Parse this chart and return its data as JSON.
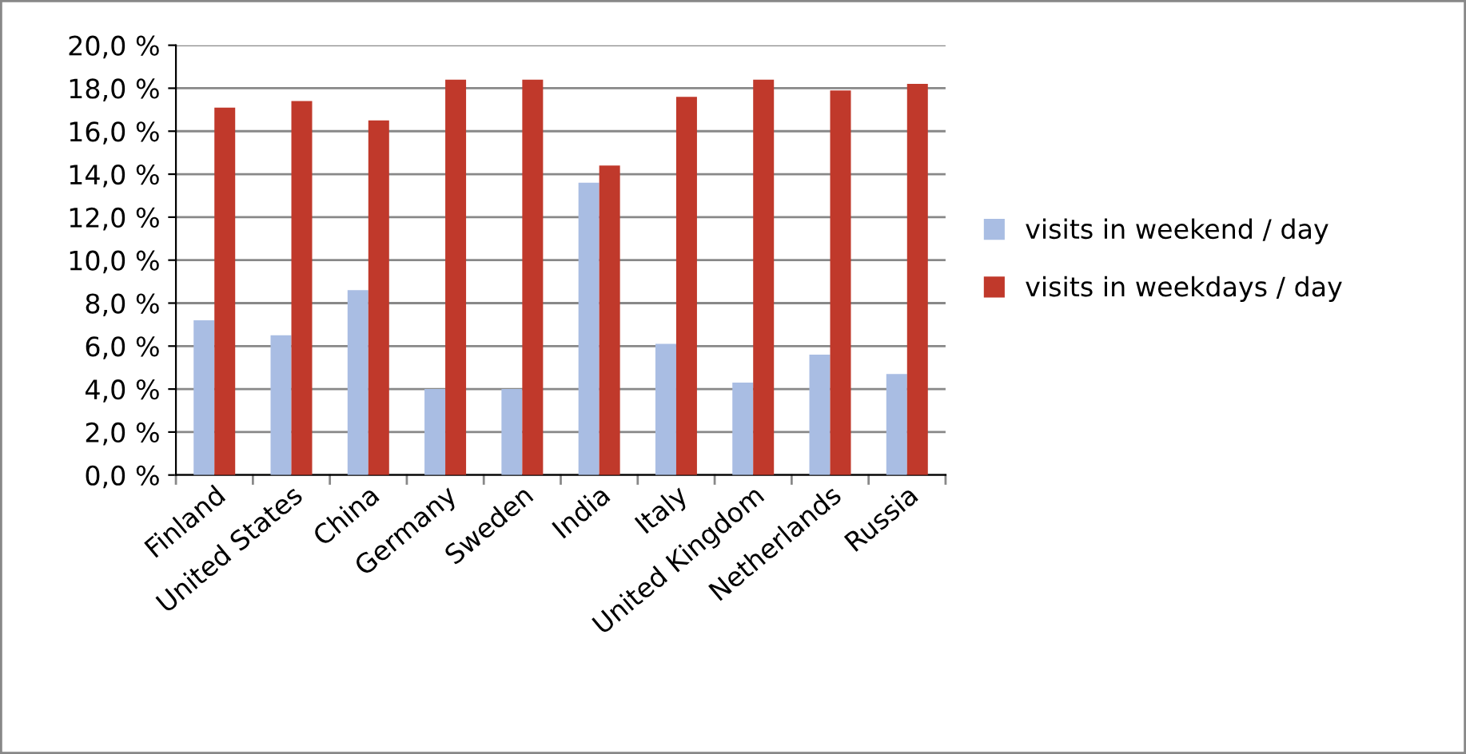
{
  "chart_data": {
    "type": "bar",
    "categories": [
      "Finland",
      "United States",
      "China",
      "Germany",
      "Sweden",
      "India",
      "Italy",
      "United Kingdom",
      "Netherlands",
      "Russia"
    ],
    "series": [
      {
        "name": "visits in weekend / day",
        "color": "#a9bde3",
        "values": [
          7.2,
          6.5,
          8.6,
          4.0,
          4.0,
          13.6,
          6.1,
          4.3,
          5.6,
          4.7
        ]
      },
      {
        "name": "visits in weekdays / day",
        "color": "#c0392b",
        "values": [
          17.1,
          17.4,
          16.5,
          18.4,
          18.4,
          14.4,
          17.6,
          18.4,
          17.9,
          18.2
        ]
      }
    ],
    "ylim": [
      0,
      20
    ],
    "yticks": [
      {
        "value": 0,
        "label": "0,0 %"
      },
      {
        "value": 2,
        "label": "2,0 %"
      },
      {
        "value": 4,
        "label": "4,0 %"
      },
      {
        "value": 6,
        "label": "6,0 %"
      },
      {
        "value": 8,
        "label": "8,0 %"
      },
      {
        "value": 10,
        "label": "10,0 %"
      },
      {
        "value": 12,
        "label": "12,0 %"
      },
      {
        "value": 14,
        "label": "14,0 %"
      },
      {
        "value": 16,
        "label": "16,0 %"
      },
      {
        "value": 18,
        "label": "18,0 %"
      },
      {
        "value": 20,
        "label": "20,0 %"
      }
    ],
    "grid": "y",
    "legend": "right"
  }
}
